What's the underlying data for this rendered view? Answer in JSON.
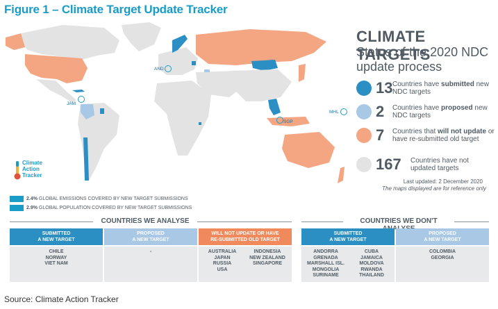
{
  "figure_title": "Figure 1 – Climate Target Update Tracker",
  "panel": {
    "title": "CLIMATE TARGETS",
    "subtitle": "Status of the 2020 NDC update process",
    "legend": [
      {
        "number": "13",
        "text_before": "Countries have ",
        "emphasis": "submitted",
        "text_after": " new NDC targets",
        "color": "#2b8fc4"
      },
      {
        "number": "2",
        "text_before": "Countries have ",
        "emphasis": "proposed",
        "text_after": " new NDC targets",
        "color": "#a8c8e6"
      },
      {
        "number": "7",
        "text_before": "Countries that ",
        "emphasis": "will not update",
        "text_after": " or have re-submitted old target",
        "color": "#f4a582"
      },
      {
        "number": "167",
        "text_before": "Countries have not updated targets",
        "emphasis": "",
        "text_after": "",
        "color": "#e3e3e3"
      }
    ],
    "last_updated": "Last updated: 2 December 2020",
    "reference_note": "The maps displayed are for reference only"
  },
  "map_labels": {
    "andorra": "AND",
    "jamaica": "JAM",
    "marshall": "MHL",
    "singapore": "SGP"
  },
  "logo": {
    "line1": "Climate",
    "line2": "Action",
    "line3": "Tracker"
  },
  "coverage": {
    "emissions_value": "2.4%",
    "emissions_text": " GLOBAL EMISSIONS COVERED BY NEW TARGET SUBMISSIONS",
    "population_value": "2.9%",
    "population_text": " GLOBAL POPULATION COVERED BY NEW TARGET SUBMISSIONS"
  },
  "tables": {
    "analysed": {
      "heading": "COUNTRIES WE ANALYSE",
      "columns": [
        {
          "header1": "SUBMITTED",
          "header2": "A NEW TARGET",
          "color": "#2b8fc4",
          "countries_a": [
            "CHILE",
            "NORWAY",
            "VIET NAM"
          ],
          "countries_b": []
        },
        {
          "header1": "PROPOSED",
          "header2": "A NEW TARGET",
          "color": "#a8c8e6",
          "countries_a": [
            "-"
          ],
          "countries_b": []
        },
        {
          "header1": "WILL NOT UPDATE OR HAVE",
          "header2": "RE-SUBMITTED OLD TARGET",
          "color": "#f08a5d",
          "countries_a": [
            "AUSTRALIA",
            "JAPAN",
            "RUSSIA",
            "USA"
          ],
          "countries_b": [
            "INDONESIA",
            "NEW ZEALAND",
            "SINGAPORE"
          ]
        }
      ]
    },
    "not_analysed": {
      "heading": "COUNTRIES WE DON'T ANALYSE",
      "columns": [
        {
          "header1": "SUBMITTED",
          "header2": "A NEW TARGET",
          "color": "#2b8fc4",
          "countries_a": [
            "ANDORRA",
            "GRENADA",
            "MARSHALL ISL.",
            "MONGOLIA",
            "SURINAME"
          ],
          "countries_b": [
            "CUBA",
            "JAMAICA",
            "MOLDOVA",
            "RWANDA",
            "THAILAND"
          ]
        },
        {
          "header1": "PROPOSED",
          "header2": "A NEW TARGET",
          "color": "#a8c8e6",
          "countries_a": [
            "COLOMBIA",
            "GEORGIA"
          ],
          "countries_b": []
        }
      ]
    }
  },
  "source": "Source: Climate Action Tracker"
}
